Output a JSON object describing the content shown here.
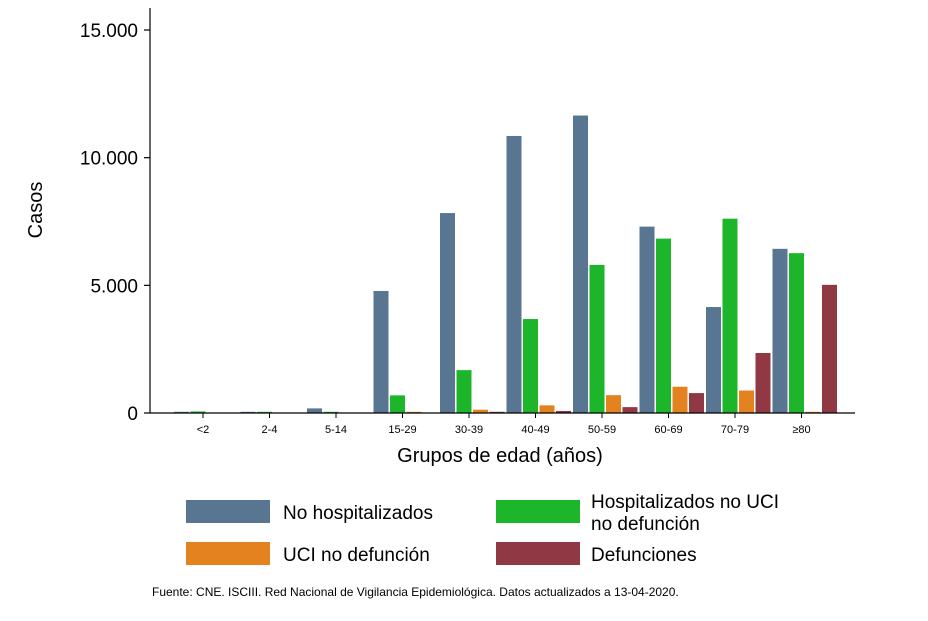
{
  "chart_data": {
    "type": "bar",
    "title": "",
    "xlabel": "Grupos de edad (años)",
    "ylabel": "Casos",
    "ylim": [
      0,
      15000
    ],
    "yticks": [
      0,
      5000,
      10000,
      15000
    ],
    "ytick_labels": [
      "0",
      "5.000",
      "10.000",
      "15.000"
    ],
    "categories": [
      "<2",
      "2-4",
      "5-14",
      "15-29",
      "30-39",
      "40-49",
      "50-59",
      "60-69",
      "70-79",
      "≥80"
    ],
    "series": [
      {
        "name": "No hospitalizados",
        "color": "#587591",
        "values": [
          40,
          20,
          180,
          4780,
          7830,
          10850,
          11650,
          7300,
          4150,
          6430
        ]
      },
      {
        "name": "Hospitalizados no UCI no defunción",
        "color": "#1db62a",
        "values": [
          60,
          10,
          30,
          690,
          1680,
          3680,
          5800,
          6830,
          7610,
          6260
        ]
      },
      {
        "name": "UCI no defunción",
        "color": "#e4821f",
        "values": [
          0,
          0,
          0,
          40,
          130,
          300,
          700,
          1030,
          880,
          40
        ]
      },
      {
        "name": "Defunciones",
        "color": "#903843",
        "values": [
          0,
          0,
          0,
          0,
          20,
          80,
          230,
          780,
          2350,
          5020
        ]
      }
    ],
    "legend": {
      "placement": "bottom",
      "entries": [
        [
          "No hospitalizados"
        ],
        [
          "Hospitalizados no UCI",
          "no defunción"
        ],
        [
          "UCI no defunción"
        ],
        [
          "Defunciones"
        ]
      ]
    },
    "source": "Fuente: CNE. ISCIII. Red Nacional de Vigilancia Epidemiológica. Datos actualizados a 13-04-2020."
  }
}
